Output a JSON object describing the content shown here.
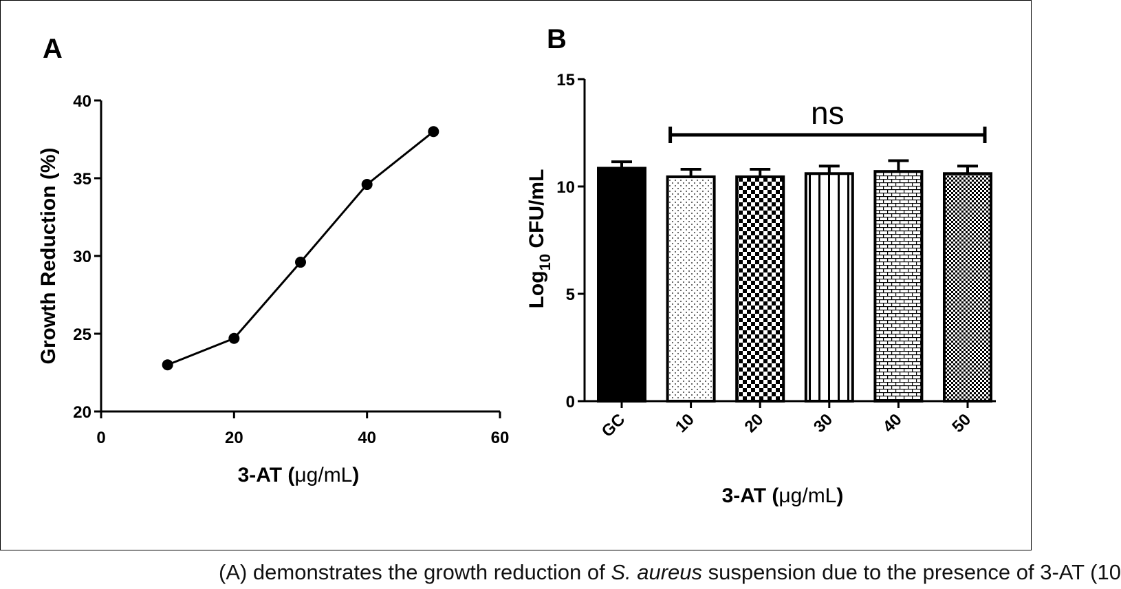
{
  "caption": {
    "before": "(A) demonstrates the growth reduction of ",
    "italic": "S. aureus",
    "after": " suspension due to the presence of 3-AT (10"
  },
  "chart_data": [
    {
      "panel": "A",
      "type": "line",
      "xlabel_prefix": "3-AT (",
      "xlabel_unit": "μg/mL",
      "xlabel_suffix": ")",
      "ylabel": "Growth Reduction (%)",
      "xlim": [
        0,
        60
      ],
      "ylim": [
        20,
        40
      ],
      "xticks": [
        0,
        20,
        40,
        60
      ],
      "yticks": [
        20,
        25,
        30,
        35,
        40
      ],
      "grid": false,
      "series": [
        {
          "x": [
            10,
            20,
            30,
            40,
            50
          ],
          "y": [
            23.0,
            24.7,
            29.6,
            34.6,
            38.0
          ]
        }
      ]
    },
    {
      "panel": "B",
      "type": "bar",
      "xlabel_prefix": "3-AT (",
      "xlabel_unit": "μg/mL",
      "xlabel_suffix": ")",
      "ylabel_prefix": "Log",
      "ylabel_sub": "10",
      "ylabel_suffix": " CFU/mL",
      "ylim": [
        0,
        15
      ],
      "yticks": [
        0,
        5,
        10,
        15
      ],
      "grid": false,
      "categories": [
        "GC",
        "10",
        "20",
        "30",
        "40",
        "50"
      ],
      "values": [
        10.85,
        10.45,
        10.45,
        10.6,
        10.7,
        10.6
      ],
      "errors": [
        0.3,
        0.35,
        0.35,
        0.35,
        0.5,
        0.35
      ],
      "patterns": [
        "solid",
        "dots",
        "checker",
        "vertical-stripes",
        "brick",
        "dense-checker"
      ],
      "annotation": {
        "text": "ns",
        "from": "10",
        "to": "50"
      }
    }
  ]
}
